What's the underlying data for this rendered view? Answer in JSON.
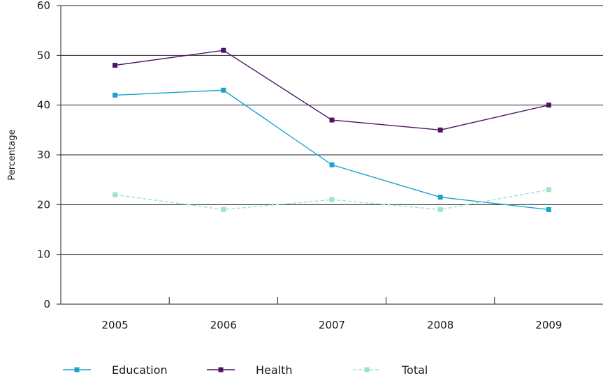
{
  "chart_data": {
    "type": "line",
    "title": "",
    "xlabel": "",
    "ylabel": "Percentage",
    "categories": [
      "2005",
      "2006",
      "2007",
      "2008",
      "2009"
    ],
    "ylim": [
      0,
      60
    ],
    "yticks": [
      "0",
      "10",
      "20",
      "30",
      "40",
      "50",
      "60"
    ],
    "grid": "horizontal",
    "legend_position": "bottom",
    "series": [
      {
        "name": "Education",
        "values": [
          42,
          43,
          28,
          21.5,
          19
        ],
        "color": "#1aa3cc",
        "style": "solid",
        "marker": "square"
      },
      {
        "name": "Health",
        "values": [
          48,
          51,
          37,
          35,
          40
        ],
        "color": "#4b1464",
        "style": "solid",
        "marker": "square"
      },
      {
        "name": "Total",
        "values": [
          22,
          19,
          21,
          19,
          23
        ],
        "color": "#9fe0d6",
        "style": "dashed",
        "marker": "square"
      }
    ]
  }
}
